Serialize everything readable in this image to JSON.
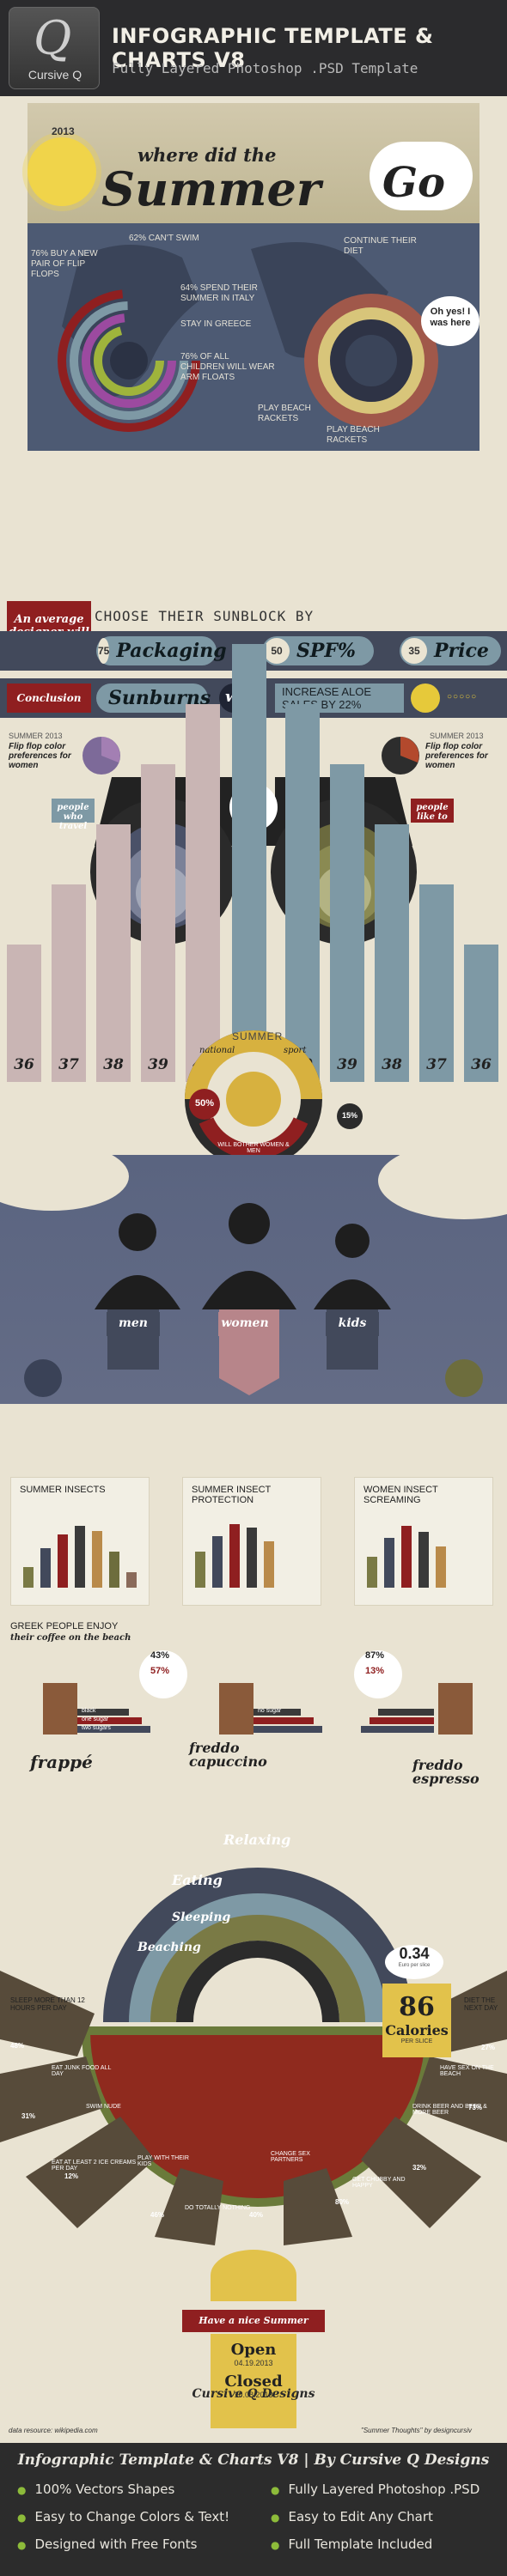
{
  "header": {
    "logo_mark": "Q",
    "logo_name": "Cursive Q",
    "title": "INFOGRAPHIC TEMPLATE & CHARTS V8",
    "subtitle": "Fully Layered Photoshop .PSD Template"
  },
  "hero": {
    "year": "2013",
    "title_where": "where did the",
    "title_summer": "Summer",
    "title_go": "Go",
    "oh_yes": "Oh yes! I was here",
    "left_labels": [
      "76% buy a new pair of flip flops",
      "62% can't swim",
      "64% spend their summer in Italy",
      "stay in Greece",
      "76% of all children will wear arm floats"
    ],
    "right_labels": [
      "continue their diet",
      "play beach rackets",
      "play beach rackets"
    ]
  },
  "sunblock": {
    "average": "An average designer will",
    "choose": "CHOOSE THEIR SUNBLOCK BY",
    "items": [
      {
        "num": "75",
        "label": "Packaging"
      },
      {
        "num": "50",
        "label": "SPF%"
      },
      {
        "num": "35",
        "label": "Price"
      }
    ],
    "conclusion": "Conclusion",
    "sunburns": "Sunburns",
    "will": "will",
    "increase": "INCREASE ALOE SALES BY 22%"
  },
  "flipflop": {
    "left_title": "Flip flop color preferences for women",
    "right_title": "Flip flop color preferences for women",
    "left_year": "SUMMER 2013",
    "right_year": "SUMMER 2013",
    "people_travel": "people who travel",
    "people_like": "people like to",
    "national": "national",
    "summer": "SUMMER",
    "sport": "sport",
    "will_bother": "WILL BOTHER WOMEN & MEN",
    "pct_a": "50%",
    "pct_b": "15%",
    "bars": [
      "36",
      "37",
      "38",
      "39",
      "40",
      "41",
      "40",
      "39",
      "38",
      "37",
      "36"
    ]
  },
  "people": {
    "men": "men",
    "women": "women",
    "kids": "kids"
  },
  "cards": [
    {
      "title": "SUMMER insects",
      "values": [
        20,
        38,
        52,
        60,
        55,
        35,
        15
      ]
    },
    {
      "title": "SUMMER insect protection",
      "values": [
        35,
        50,
        62,
        58,
        45
      ]
    },
    {
      "title": "WOMEN insect screaming",
      "values": [
        30,
        48,
        60,
        54,
        40
      ]
    }
  ],
  "coffee": {
    "intro_1": "GREEK PEOPLE ENJOY",
    "intro_2": "their coffee on the beach",
    "frappe": "frappé",
    "freddo_cap": "freddo capuccino",
    "freddo_esp": "freddo espresso",
    "pct_1": "43%",
    "pct_2": "57%",
    "pct_3": "87%",
    "pct_4": "13%",
    "legend": [
      "black",
      "one sugar",
      "two sugars",
      "no sugar"
    ]
  },
  "activities": {
    "relaxing": "Relaxing",
    "eating": "Eating",
    "sleeping": "Sleeping",
    "beaching": "Beaching",
    "price": "0.34",
    "price_sub": "Euro per slice",
    "calories": "86",
    "calories_lbl": "Calories",
    "calories_sub": "PER SLICE",
    "notes_left": [
      "SLEEP MORE THAN 12 HOURS PER DAY",
      "EAT JUNK FOOD ALL DAY",
      "SWIM NUDE",
      "EAT AT LEAST 2 ICE CREAMS PER DAY",
      "PLAY WITH THEIR KIDS",
      "DO TOTALLY NOTHING"
    ],
    "notes_right": [
      "DIET THE NEXT DAY",
      "HAVE SEX ON THE BEACH",
      "DRINK BEER AND BEER & MORE BEER",
      "GET CHUBBY AND HAPPY",
      "CHANGE SEX PARTNERS"
    ],
    "pcts": [
      "48%",
      "31%",
      "12%",
      "46%",
      "40%",
      "80%",
      "32%",
      "73%",
      "27%"
    ]
  },
  "summer_ticket": {
    "nice": "Have a nice Summer",
    "open": "Open",
    "open_date": "04.19.2013",
    "closed": "Closed",
    "closed_date": "10.08.2013"
  },
  "brand": "Cursive Q Designs",
  "data_resource": "data resource: wikipedia.com",
  "summer_thoughts": "\"Summer Thoughts\" by designcursiv",
  "footer": {
    "title": "Infographic Template & Charts V8 | By Cursive Q Designs",
    "features_left": [
      "100% Vectors Shapes",
      "Easy to Change Colors & Text!",
      "Designed with Free Fonts"
    ],
    "features_right": [
      "Fully Layered Photoshop .PSD",
      "Easy to Edit Any Chart",
      "Full Template Included"
    ]
  },
  "colors": {
    "navy": "#42495b",
    "red": "#8f1f20",
    "olive": "#7a7a45",
    "teal": "#7e99a5",
    "mauve": "#c9b5b4",
    "cream": "#e9e3d2"
  }
}
